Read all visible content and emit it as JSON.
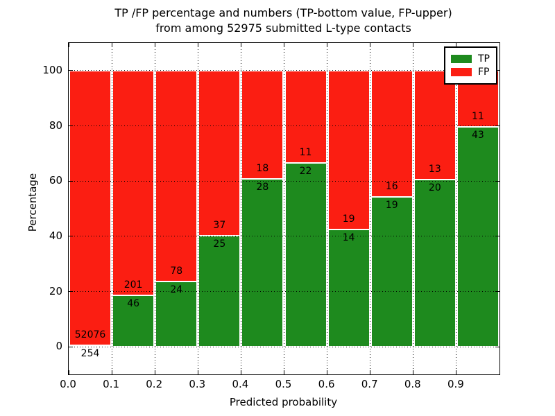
{
  "title": {
    "line1": "TP /FP percentage and numbers (TP-bottom value, FP-upper)",
    "line2": "from among 52975 submitted L-type contacts"
  },
  "axes": {
    "xlabel": "Predicted probability",
    "ylabel": "Percentage",
    "x_tick_labels": [
      "0.0",
      "0.1",
      "0.2",
      "0.3",
      "0.4",
      "0.5",
      "0.6",
      "0.7",
      "0.8",
      "0.9"
    ],
    "x_tick_values": [
      0.0,
      0.1,
      0.2,
      0.3,
      0.4,
      0.5,
      0.6,
      0.7,
      0.8,
      0.9
    ],
    "y_tick_labels": [
      "0",
      "20",
      "40",
      "60",
      "80",
      "100"
    ],
    "y_tick_values": [
      0,
      20,
      40,
      60,
      80,
      100
    ]
  },
  "legend": {
    "items": [
      {
        "label": "TP",
        "color": "#1e8a1e"
      },
      {
        "label": "FP",
        "color": "#fb1e12"
      }
    ]
  },
  "chart_data": {
    "type": "bar",
    "stacked": true,
    "title": "TP /FP percentage and numbers (TP-bottom value, FP-upper) from among 52975 submitted L-type contacts",
    "xlabel": "Predicted probability",
    "ylabel": "Percentage",
    "xlim": [
      0.0,
      1.0
    ],
    "ylim": [
      -10,
      110
    ],
    "grid": "dotted",
    "legend_position": "upper right",
    "bar_edge_color": "#ffffff",
    "total_contacts": 52975,
    "bin_edges": [
      0.0,
      0.1,
      0.2,
      0.3,
      0.4,
      0.5,
      0.6,
      0.7,
      0.8,
      0.9,
      1.0
    ],
    "series": [
      {
        "name": "TP",
        "color": "#1e8a1e",
        "counts": [
          254,
          46,
          24,
          25,
          28,
          22,
          14,
          19,
          20,
          43
        ]
      },
      {
        "name": "FP",
        "color": "#fb1e12",
        "counts": [
          52076,
          201,
          78,
          37,
          18,
          11,
          19,
          16,
          13,
          11
        ]
      }
    ],
    "tp_percent": [
      0.49,
      18.62,
      23.53,
      40.32,
      60.87,
      66.67,
      42.42,
      54.29,
      60.61,
      79.63
    ]
  }
}
